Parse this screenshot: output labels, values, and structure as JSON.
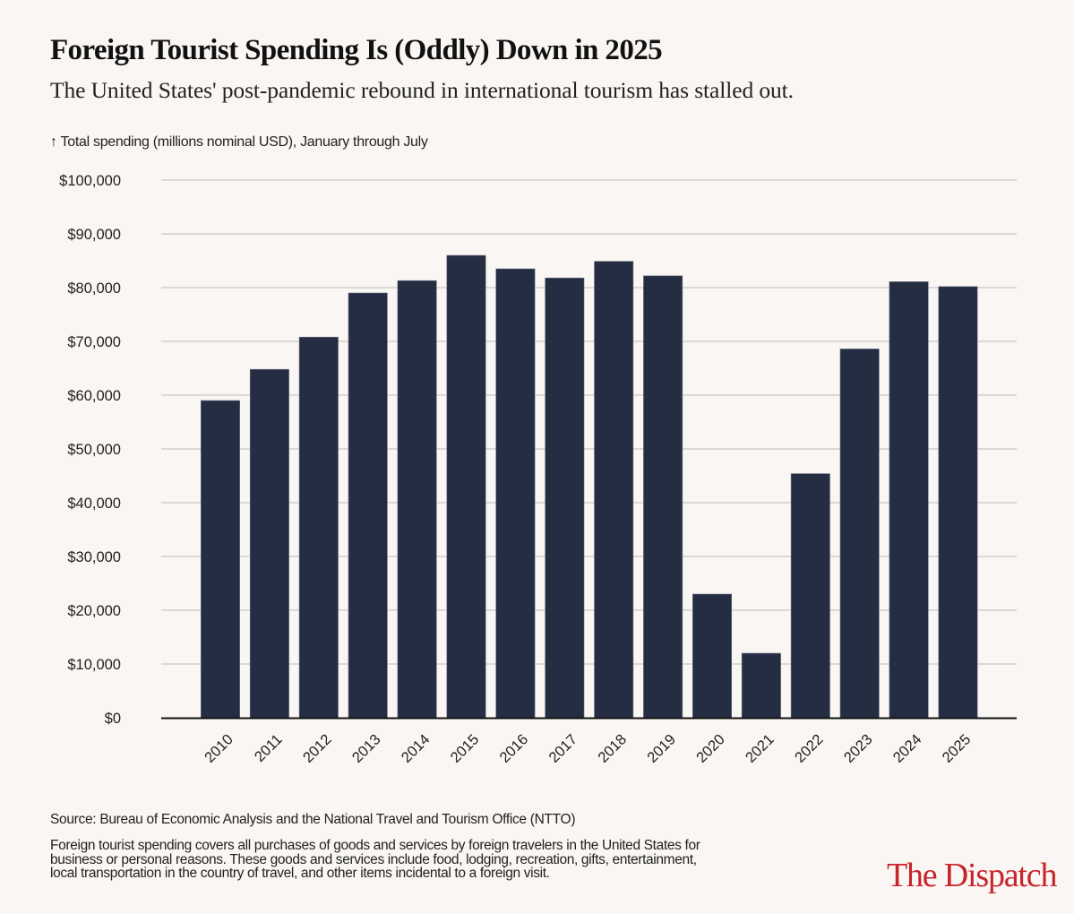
{
  "header": {
    "title": "Foreign Tourist Spending Is (Oddly) Down in 2025",
    "subtitle": "The United States' post-pandemic rebound in international tourism has stalled out."
  },
  "footer": {
    "source": "Source: Bureau of Economic Analysis and the National Travel and Tourism Office (NTTO)",
    "note": "Foreign tourist spending covers all purchases of goods and services by foreign travelers in the United States for business or personal reasons. These goods and services include food, lodging, recreation, gifts, entertainment, local transportation in the country of travel, and other items incidental to a foreign visit.",
    "logo": "The Dispatch"
  },
  "colors": {
    "background": "#f9f6f3",
    "bar": "#252d42",
    "grid": "#cbc7c4",
    "axis": "#111111",
    "brand": "#c8242b"
  },
  "chart_data": {
    "type": "bar",
    "title": "Foreign Tourist Spending Is (Oddly) Down in 2025",
    "subtitle": "The United States' post-pandemic rebound in international tourism has stalled out.",
    "ylabel": "↑ Total spending (millions nominal USD), January through July",
    "xlabel": "",
    "categories": [
      "2010",
      "2011",
      "2012",
      "2013",
      "2014",
      "2015",
      "2016",
      "2017",
      "2018",
      "2019",
      "2020",
      "2021",
      "2022",
      "2023",
      "2024",
      "2025"
    ],
    "values": [
      59000,
      64800,
      70800,
      79000,
      81300,
      86000,
      83500,
      81800,
      84900,
      82200,
      23000,
      12000,
      45400,
      68600,
      81100,
      80200
    ],
    "ylim": [
      0,
      100000
    ],
    "yticks": [
      0,
      10000,
      20000,
      30000,
      40000,
      50000,
      60000,
      70000,
      80000,
      90000,
      100000
    ],
    "ytick_labels": [
      "$0",
      "$10,000",
      "$20,000",
      "$30,000",
      "$40,000",
      "$50,000",
      "$60,000",
      "$70,000",
      "$80,000",
      "$90,000",
      "$100,000"
    ],
    "grid": true,
    "legend": "none",
    "xtick_rotation_deg": -45
  }
}
